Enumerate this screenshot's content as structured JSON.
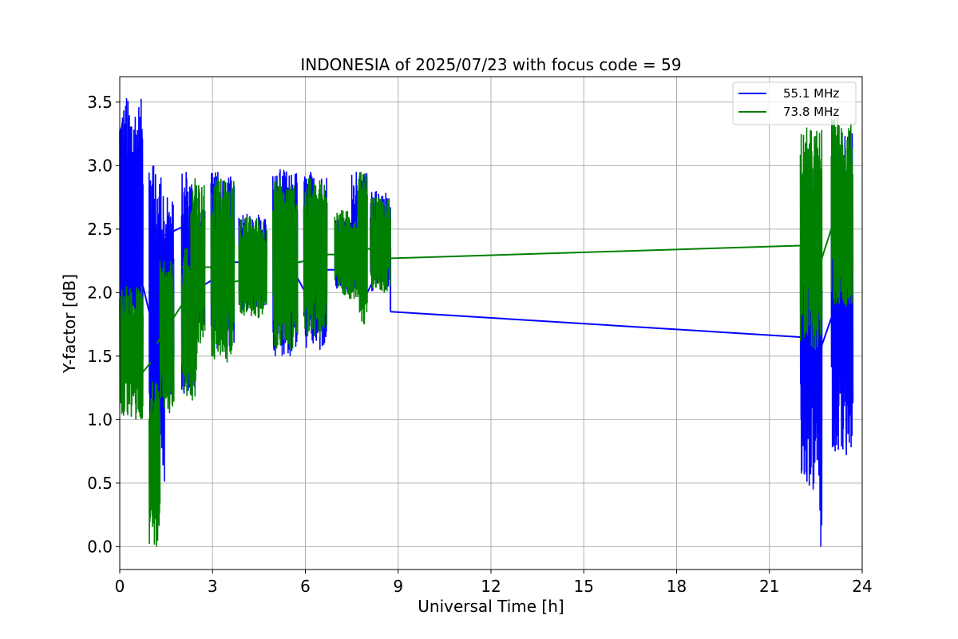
{
  "chart_data": {
    "type": "line",
    "title": "INDONESIA of 2025/07/23 with focus code = 59",
    "xlabel": "Universal Time [h]",
    "ylabel": "Y-factor [dB]",
    "xlim": [
      0,
      24
    ],
    "ylim": [
      -0.18,
      3.7
    ],
    "x_ticks": [
      0,
      3,
      6,
      9,
      12,
      15,
      18,
      21,
      24
    ],
    "x_tick_labels": [
      "0",
      "3",
      "6",
      "9",
      "12",
      "15",
      "18",
      "21",
      "24"
    ],
    "y_ticks": [
      0.0,
      0.5,
      1.0,
      1.5,
      2.0,
      2.5,
      3.0,
      3.5
    ],
    "y_tick_labels": [
      "0.0",
      "0.5",
      "1.0",
      "1.5",
      "2.0",
      "2.5",
      "3.0",
      "3.5"
    ],
    "grid": true,
    "legend_position": "top-right",
    "series": [
      {
        "name": "55.1 MHz",
        "color": "#0000ff",
        "bursts": [
          {
            "start": 0.0,
            "end": 0.75,
            "low": 1.25,
            "high": 3.53
          },
          {
            "start": 0.95,
            "end": 1.45,
            "low": 0.45,
            "high": 3.0
          },
          {
            "start": 1.45,
            "end": 1.75,
            "low": 1.2,
            "high": 2.75
          },
          {
            "start": 2.0,
            "end": 2.5,
            "low": 1.2,
            "high": 2.95
          },
          {
            "start": 2.5,
            "end": 2.75,
            "low": 1.7,
            "high": 2.65
          },
          {
            "start": 2.95,
            "end": 3.7,
            "low": 1.55,
            "high": 2.95
          },
          {
            "start": 3.85,
            "end": 4.75,
            "low": 1.85,
            "high": 2.62
          },
          {
            "start": 4.95,
            "end": 5.75,
            "low": 1.5,
            "high": 2.97
          },
          {
            "start": 5.95,
            "end": 6.7,
            "low": 1.55,
            "high": 2.95
          },
          {
            "start": 6.95,
            "end": 7.7,
            "low": 2.0,
            "high": 2.6
          },
          {
            "start": 7.5,
            "end": 8.0,
            "low": 2.0,
            "high": 2.95
          },
          {
            "start": 8.1,
            "end": 8.75,
            "low": 2.0,
            "high": 2.8
          },
          {
            "start": 22.0,
            "end": 22.6,
            "low": 0.45,
            "high": 3.0
          },
          {
            "start": 22.6,
            "end": 22.7,
            "low": 0.0,
            "high": 2.5
          },
          {
            "start": 23.0,
            "end": 23.7,
            "low": 0.72,
            "high": 3.3
          }
        ],
        "connectors": [
          {
            "x": [
              0.75,
              0.95
            ],
            "y": [
              2.05,
              1.85
            ]
          },
          {
            "x": [
              1.2,
              2.3
            ],
            "y": [
              2.42,
              2.55
            ]
          },
          {
            "x": [
              2.3,
              3.0
            ],
            "y": [
              2.0,
              2.1
            ]
          },
          {
            "x": [
              3.0,
              4.0
            ],
            "y": [
              2.24,
              2.24
            ]
          },
          {
            "x": [
              5.0,
              6.0
            ],
            "y": [
              2.45,
              2.0
            ]
          },
          {
            "x": [
              6.0,
              7.0
            ],
            "y": [
              2.18,
              2.18
            ]
          },
          {
            "x": [
              7.0,
              8.0
            ],
            "y": [
              2.18,
              2.18
            ]
          },
          {
            "x": [
              8.0,
              8.75
            ],
            "y": [
              2.0,
              2.35
            ]
          },
          {
            "x": [
              8.75,
              8.75
            ],
            "y": [
              2.35,
              1.85
            ]
          },
          {
            "x": [
              8.75,
              22.0
            ],
            "y": [
              1.85,
              1.65
            ]
          },
          {
            "x": [
              22.6,
              23.0
            ],
            "y": [
              1.52,
              1.8
            ]
          }
        ]
      },
      {
        "name": "73.8 MHz",
        "color": "#008000",
        "bursts": [
          {
            "start": 0.0,
            "end": 0.75,
            "low": 1.0,
            "high": 2.05
          },
          {
            "start": 0.95,
            "end": 1.3,
            "low": 0.0,
            "high": 1.3
          },
          {
            "start": 1.3,
            "end": 1.75,
            "low": 1.05,
            "high": 2.25
          },
          {
            "start": 2.0,
            "end": 2.5,
            "low": 1.15,
            "high": 2.35
          },
          {
            "start": 2.3,
            "end": 2.75,
            "low": 1.6,
            "high": 2.9
          },
          {
            "start": 2.95,
            "end": 3.7,
            "low": 1.45,
            "high": 2.9
          },
          {
            "start": 3.85,
            "end": 4.75,
            "low": 1.8,
            "high": 2.6
          },
          {
            "start": 4.95,
            "end": 5.75,
            "low": 1.55,
            "high": 2.9
          },
          {
            "start": 5.95,
            "end": 6.7,
            "low": 1.65,
            "high": 2.9
          },
          {
            "start": 6.95,
            "end": 7.7,
            "low": 1.95,
            "high": 2.65
          },
          {
            "start": 7.7,
            "end": 8.0,
            "low": 1.75,
            "high": 2.95
          },
          {
            "start": 8.1,
            "end": 8.75,
            "low": 2.0,
            "high": 2.75
          },
          {
            "start": 22.0,
            "end": 22.7,
            "low": 1.55,
            "high": 3.3
          },
          {
            "start": 23.0,
            "end": 23.7,
            "low": 1.9,
            "high": 3.38
          }
        ],
        "connectors": [
          {
            "x": [
              0.5,
              1.0
            ],
            "y": [
              1.3,
              1.45
            ]
          },
          {
            "x": [
              1.2,
              2.0
            ],
            "y": [
              1.6,
              1.9
            ]
          },
          {
            "x": [
              2.0,
              3.0
            ],
            "y": [
              2.2,
              2.2
            ]
          },
          {
            "x": [
              3.0,
              4.0
            ],
            "y": [
              2.05,
              2.1
            ]
          },
          {
            "x": [
              5.0,
              6.0
            ],
            "y": [
              2.2,
              2.25
            ]
          },
          {
            "x": [
              6.0,
              7.0
            ],
            "y": [
              2.3,
              2.3
            ]
          },
          {
            "x": [
              7.0,
              8.0
            ],
            "y": [
              2.3,
              2.4
            ]
          },
          {
            "x": [
              8.0,
              8.75
            ],
            "y": [
              2.35,
              2.27
            ]
          },
          {
            "x": [
              8.75,
              22.0
            ],
            "y": [
              2.27,
              2.37
            ]
          },
          {
            "x": [
              22.6,
              23.0
            ],
            "y": [
              2.2,
              2.5
            ]
          }
        ]
      }
    ]
  }
}
